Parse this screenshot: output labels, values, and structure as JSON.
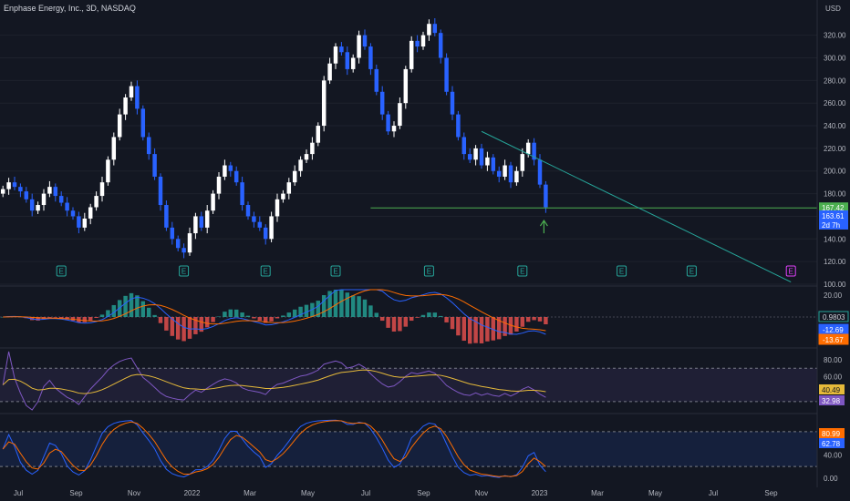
{
  "header": {
    "title": "Enphase Energy, Inc., 3D, NASDAQ",
    "currency": "USD"
  },
  "colors": {
    "background": "#131722",
    "up": "#ffffff",
    "down": "#2962ff",
    "trendline": "#26a69a",
    "hline": "#4caf50",
    "macd_line": "#2962ff",
    "signal_line": "#ff6d00",
    "rsi_line": "#7e57c2",
    "rsi_ma": "#e5b93a",
    "stoch_k": "#2962ff",
    "stoch_d": "#ff6d00",
    "earnings": "#26a69a",
    "earnings_future": "#e040fb"
  },
  "chart_data": [
    {
      "type": "candlestick",
      "title": "Enphase Energy, Inc., 3D, NASDAQ",
      "yunit": "USD",
      "ylim": [
        100,
        335
      ],
      "y_ticks": [
        100,
        120,
        140,
        160,
        180,
        200,
        220,
        240,
        260,
        280,
        300,
        320
      ],
      "x_ticks": [
        "Jul",
        "Sep",
        "Nov",
        "2022",
        "Mar",
        "May",
        "Jul",
        "Sep",
        "Nov",
        "2023",
        "Mar",
        "May",
        "Jul",
        "Sep"
      ],
      "close_series": [
        184,
        190,
        186,
        182,
        175,
        165,
        170,
        180,
        186,
        178,
        172,
        165,
        160,
        150,
        158,
        168,
        178,
        190,
        210,
        230,
        250,
        265,
        275,
        255,
        230,
        215,
        195,
        170,
        150,
        140,
        132,
        128,
        145,
        160,
        150,
        165,
        180,
        195,
        205,
        200,
        190,
        170,
        160,
        155,
        150,
        140,
        160,
        175,
        180,
        190,
        200,
        210,
        215,
        225,
        240,
        280,
        295,
        310,
        305,
        290,
        300,
        320,
        310,
        290,
        270,
        250,
        235,
        240,
        260,
        290,
        315,
        310,
        320,
        330,
        322,
        300,
        270,
        250,
        230,
        215,
        210,
        220,
        205,
        212,
        200,
        195,
        205,
        190,
        200,
        215,
        225,
        210,
        188,
        168
      ],
      "last_close": 163.61,
      "last_open": 167.42,
      "countdown": "2d 7h",
      "annotations": {
        "horizontal_line": 167.42,
        "trendline": {
          "from": {
            "x_index": 82,
            "y": 235
          },
          "to": {
            "x_index": 135,
            "y": 102
          }
        },
        "arrow_up_at_last": true
      },
      "earnings_markers": [
        {
          "x_index": 10,
          "label": "E"
        },
        {
          "x_index": 31,
          "label": "E"
        },
        {
          "x_index": 45,
          "label": "E"
        },
        {
          "x_index": 57,
          "label": "E"
        },
        {
          "x_index": 73,
          "label": "E"
        },
        {
          "x_index": 89,
          "label": "E"
        },
        {
          "x_index": 106,
          "label": "E"
        },
        {
          "x_index": 118,
          "label": "E"
        },
        {
          "x_index": 135,
          "label": "E",
          "future": true
        }
      ],
      "price_labels": [
        {
          "value": 167.42,
          "text": "167.42",
          "color": "#4caf50"
        },
        {
          "value": 163.61,
          "text": "163.61",
          "color": "#2962ff"
        },
        {
          "value": 160.0,
          "text": "2d 7h",
          "color": "#2962ff"
        }
      ]
    },
    {
      "type": "line",
      "title": "MACD",
      "ylim": [
        -25,
        25
      ],
      "y_ticks": [
        20
      ],
      "tick_labels": [
        "20.00"
      ],
      "current": {
        "histogram": 0.9803,
        "macd": -12.69,
        "signal": -13.67
      },
      "value_labels": [
        "0.9803",
        "-12.69",
        "-13.67"
      ]
    },
    {
      "type": "line",
      "title": "RSI",
      "ylim": [
        20,
        90
      ],
      "y_ticks": [
        80,
        60
      ],
      "tick_labels": [
        "80.00",
        "60.00"
      ],
      "current": {
        "rsi": 32.98,
        "rsi_ma": 40.49
      },
      "value_labels": [
        "40.49",
        "32.98"
      ],
      "bands": [
        70,
        30
      ]
    },
    {
      "type": "line",
      "title": "Stochastic",
      "ylim": [
        -5,
        105
      ],
      "y_ticks": [
        40,
        0
      ],
      "tick_labels": [
        "40.00",
        "0.00"
      ],
      "current": {
        "k": 62.78,
        "d": 80.99
      },
      "value_labels": [
        "80.99",
        "62.78"
      ],
      "bands": [
        80,
        20
      ]
    }
  ]
}
